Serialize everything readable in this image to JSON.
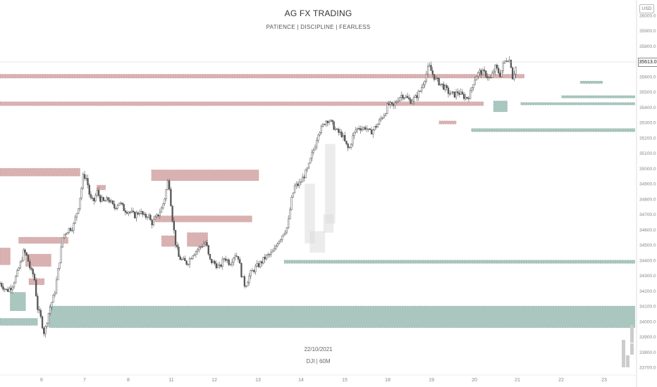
{
  "header": {
    "title": "AG FX TRADING",
    "subtitle": "PATIENCE  |  DISCIPLINE  |  FEARLESS"
  },
  "watermark": {
    "date": "22/10/2021",
    "symbol": "DJI | 60M"
  },
  "currency_label": "USD",
  "last_price_label": "35613.0",
  "colors": {
    "supply_zone": "#d9b1b1",
    "demand_zone": "#a9c6bf",
    "candle": "#555555",
    "grid_axis_text": "#888888"
  },
  "chart_data": {
    "type": "candlestick",
    "symbol": "DJI",
    "timeframe": "60M",
    "ylim": [
      33650,
      36100
    ],
    "yticks": [
      33700,
      33800,
      33900,
      34000,
      34100,
      34200,
      34300,
      34400,
      34500,
      34600,
      34700,
      34800,
      34900,
      35000,
      35100,
      35200,
      35300,
      35400,
      35500,
      35600,
      35700,
      35800,
      35900,
      36000
    ],
    "yticklabels": [
      "33700.0",
      "33800.0",
      "33900.0",
      "34000.0",
      "34100.0",
      "34200.0",
      "34300.0",
      "34400.0",
      "34500.0",
      "34600.0",
      "34700.0",
      "34800.0",
      "34900.0",
      "35000.0",
      "35100.0",
      "35200.0",
      "35300.0",
      "35400.0",
      "35500.0",
      "35600.0",
      "35700.0",
      "35800.0",
      "35900.0",
      "36000.0"
    ],
    "xlim": [
      5.0,
      23.7
    ],
    "xticks": [
      6,
      7,
      8,
      11,
      12,
      13,
      14,
      15,
      18,
      19,
      20,
      21,
      22,
      23
    ],
    "xticklabels": [
      "6",
      "7",
      "8",
      "11",
      "12",
      "13",
      "14",
      "15",
      "18",
      "19",
      "20",
      "21",
      "22",
      "23"
    ],
    "last_price": 35613.0,
    "path": [
      [
        5.0,
        34250
      ],
      [
        5.2,
        34200
      ],
      [
        5.35,
        34230
      ],
      [
        5.5,
        34310
      ],
      [
        5.6,
        34380
      ],
      [
        5.7,
        34460
      ],
      [
        5.8,
        34420
      ],
      [
        5.9,
        34330
      ],
      [
        6.0,
        34300
      ],
      [
        6.1,
        34090
      ],
      [
        6.2,
        34020
      ],
      [
        6.3,
        33920
      ],
      [
        6.45,
        34080
      ],
      [
        6.6,
        34180
      ],
      [
        6.75,
        34400
      ],
      [
        6.85,
        34560
      ],
      [
        7.0,
        34600
      ],
      [
        7.15,
        34620
      ],
      [
        7.3,
        34750
      ],
      [
        7.4,
        34880
      ],
      [
        7.45,
        34960
      ],
      [
        7.55,
        34930
      ],
      [
        7.65,
        34800
      ],
      [
        7.75,
        34780
      ],
      [
        7.85,
        34850
      ],
      [
        7.95,
        34800
      ],
      [
        8.05,
        34780
      ],
      [
        8.2,
        34800
      ],
      [
        8.35,
        34740
      ],
      [
        8.5,
        34780
      ],
      [
        8.65,
        34730
      ],
      [
        8.8,
        34720
      ],
      [
        8.95,
        34690
      ],
      [
        9.1,
        34720
      ],
      [
        9.25,
        34680
      ],
      [
        9.35,
        34700
      ],
      [
        9.45,
        34640
      ],
      [
        9.6,
        34680
      ],
      [
        9.75,
        34740
      ],
      [
        9.85,
        34820
      ],
      [
        9.95,
        34940
      ],
      [
        10.05,
        34700
      ],
      [
        10.15,
        34520
      ],
      [
        10.25,
        34420
      ],
      [
        10.35,
        34400
      ],
      [
        10.5,
        34380
      ],
      [
        10.65,
        34440
      ],
      [
        10.8,
        34470
      ],
      [
        10.95,
        34500
      ],
      [
        11.05,
        34520
      ],
      [
        11.15,
        34400
      ],
      [
        11.3,
        34380
      ],
      [
        11.45,
        34350
      ],
      [
        11.6,
        34420
      ],
      [
        11.75,
        34380
      ],
      [
        11.9,
        34440
      ],
      [
        12.0,
        34420
      ],
      [
        12.1,
        34300
      ],
      [
        12.2,
        34230
      ],
      [
        12.35,
        34310
      ],
      [
        12.5,
        34350
      ],
      [
        12.65,
        34380
      ],
      [
        12.8,
        34420
      ],
      [
        12.95,
        34440
      ],
      [
        13.05,
        34460
      ],
      [
        13.15,
        34520
      ],
      [
        13.25,
        34550
      ],
      [
        13.35,
        34590
      ],
      [
        13.45,
        34620
      ],
      [
        13.55,
        34780
      ],
      [
        13.65,
        34880
      ],
      [
        13.8,
        34900
      ],
      [
        13.95,
        34960
      ],
      [
        14.05,
        35000
      ],
      [
        14.15,
        35080
      ],
      [
        14.25,
        35150
      ],
      [
        14.35,
        35240
      ],
      [
        14.45,
        35260
      ],
      [
        14.55,
        35310
      ],
      [
        14.65,
        35320
      ],
      [
        14.75,
        35290
      ],
      [
        14.9,
        35240
      ],
      [
        15.05,
        35220
      ],
      [
        15.15,
        35160
      ],
      [
        15.25,
        35120
      ],
      [
        15.35,
        35200
      ],
      [
        15.45,
        35250
      ],
      [
        15.55,
        35270
      ],
      [
        15.65,
        35260
      ],
      [
        15.75,
        35270
      ],
      [
        15.85,
        35230
      ],
      [
        15.95,
        35250
      ],
      [
        16.1,
        35290
      ],
      [
        16.2,
        35330
      ],
      [
        16.3,
        35360
      ],
      [
        16.4,
        35420
      ],
      [
        16.55,
        35400
      ],
      [
        16.7,
        35460
      ],
      [
        16.8,
        35480
      ],
      [
        16.9,
        35470
      ],
      [
        17.05,
        35440
      ],
      [
        17.2,
        35460
      ],
      [
        17.35,
        35510
      ],
      [
        17.5,
        35600
      ],
      [
        17.6,
        35670
      ],
      [
        17.7,
        35620
      ],
      [
        17.8,
        35580
      ],
      [
        17.9,
        35560
      ],
      [
        18.05,
        35530
      ],
      [
        18.2,
        35490
      ],
      [
        18.35,
        35480
      ],
      [
        18.45,
        35500
      ],
      [
        18.55,
        35480
      ],
      [
        18.7,
        35460
      ],
      [
        18.8,
        35480
      ],
      [
        18.9,
        35560
      ],
      [
        19.0,
        35610
      ],
      [
        19.1,
        35630
      ],
      [
        19.25,
        35620
      ],
      [
        19.4,
        35580
      ],
      [
        19.55,
        35660
      ],
      [
        19.7,
        35610
      ],
      [
        19.8,
        35690
      ],
      [
        19.9,
        35720
      ],
      [
        20.0,
        35700
      ],
      [
        20.05,
        35590
      ],
      [
        20.15,
        35660
      ]
    ],
    "zones": [
      {
        "type": "supply",
        "x0": 5.0,
        "x1": 20.4,
        "y0": 35590,
        "y1": 35615
      },
      {
        "type": "supply",
        "x0": 5.0,
        "x1": 19.2,
        "y0": 35410,
        "y1": 35435
      },
      {
        "type": "supply",
        "x0": 5.0,
        "x1": 7.35,
        "y0": 34950,
        "y1": 35000
      },
      {
        "type": "supply",
        "x0": 9.45,
        "x1": 12.6,
        "y0": 34920,
        "y1": 34990
      },
      {
        "type": "supply",
        "x0": 9.55,
        "x1": 12.4,
        "y0": 34650,
        "y1": 34690
      },
      {
        "type": "supply",
        "x0": 5.55,
        "x1": 7.0,
        "y0": 34510,
        "y1": 34550
      },
      {
        "type": "supply",
        "x0": 5.0,
        "x1": 5.3,
        "y0": 34370,
        "y1": 34480
      },
      {
        "type": "supply",
        "x0": 5.75,
        "x1": 6.5,
        "y0": 34360,
        "y1": 34440
      },
      {
        "type": "supply",
        "x0": 5.85,
        "x1": 6.3,
        "y0": 34240,
        "y1": 34280
      },
      {
        "type": "supply",
        "x0": 9.75,
        "x1": 10.15,
        "y0": 34490,
        "y1": 34560
      },
      {
        "type": "supply",
        "x0": 10.5,
        "x1": 11.1,
        "y0": 34490,
        "y1": 34580
      },
      {
        "type": "supply",
        "x0": 7.85,
        "x1": 8.1,
        "y0": 34860,
        "y1": 34890
      },
      {
        "type": "supply",
        "x0": 17.9,
        "x1": 18.4,
        "y0": 35290,
        "y1": 35310
      },
      {
        "type": "demand",
        "x0": 5.3,
        "x1": 5.75,
        "y0": 34070,
        "y1": 34190
      },
      {
        "type": "demand",
        "x0": 5.0,
        "x1": 6.1,
        "y0": 33975,
        "y1": 34020
      },
      {
        "type": "demand",
        "x0": 6.45,
        "x1": 23.65,
        "y0": 33960,
        "y1": 34100
      },
      {
        "type": "demand",
        "x0": 13.35,
        "x1": 23.65,
        "y0": 34380,
        "y1": 34400
      },
      {
        "type": "demand",
        "x0": 18.85,
        "x1": 23.65,
        "y0": 35240,
        "y1": 35260
      },
      {
        "type": "demand",
        "x0": 19.5,
        "x1": 19.9,
        "y0": 35370,
        "y1": 35440
      },
      {
        "type": "demand",
        "x0": 20.3,
        "x1": 23.65,
        "y0": 35415,
        "y1": 35430
      },
      {
        "type": "demand",
        "x0": 21.5,
        "x1": 23.65,
        "y0": 35460,
        "y1": 35475
      },
      {
        "type": "demand",
        "x0": 22.05,
        "x1": 22.7,
        "y0": 35555,
        "y1": 35570
      }
    ],
    "highlight_rects": [
      {
        "x0": 14.55,
        "x1": 14.85,
        "y0": 34640,
        "y1": 35160
      },
      {
        "x0": 13.95,
        "x1": 14.25,
        "y0": 34510,
        "y1": 34900
      },
      {
        "x0": 14.1,
        "x1": 14.55,
        "y0": 34450,
        "y1": 34590
      },
      {
        "x0": 14.5,
        "x1": 14.8,
        "y0": 34580,
        "y1": 34700
      }
    ]
  }
}
